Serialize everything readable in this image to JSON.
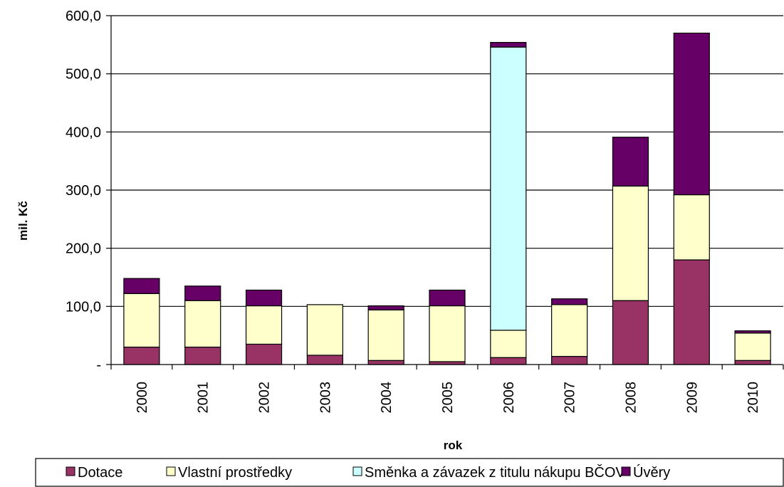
{
  "chart_data": {
    "type": "bar",
    "stacked": true,
    "categories": [
      "2000",
      "2001",
      "2002",
      "2003",
      "2004",
      "2005",
      "2006",
      "2007",
      "2008",
      "2009",
      "2010"
    ],
    "series": [
      {
        "name": "Dotace",
        "color": "#993366",
        "values": [
          30,
          30,
          35,
          16,
          7,
          5,
          12,
          14,
          110,
          180,
          7
        ]
      },
      {
        "name": "Vlastní prostředky",
        "color": "#ffffcc",
        "values": [
          92,
          80,
          66,
          87,
          87,
          96,
          47,
          89,
          197,
          112,
          47
        ]
      },
      {
        "name": "Směnka a závazek z titulu nákupu BČOV",
        "color": "#ccffff",
        "values": [
          0,
          0,
          0,
          0,
          0,
          0,
          487,
          0,
          0,
          0,
          0
        ]
      },
      {
        "name": "Úvěry",
        "color": "#660066",
        "values": [
          26,
          25,
          27,
          0,
          7,
          27,
          8,
          10,
          84,
          278,
          4
        ]
      }
    ],
    "xlabel": "rok",
    "ylabel": "mil. Kč",
    "ylim": [
      0,
      600
    ],
    "yticks": [
      "-",
      "100,0",
      "200,0",
      "300,0",
      "400,0",
      "500,0",
      "600,0"
    ],
    "grid": true,
    "legend_position": "bottom"
  }
}
